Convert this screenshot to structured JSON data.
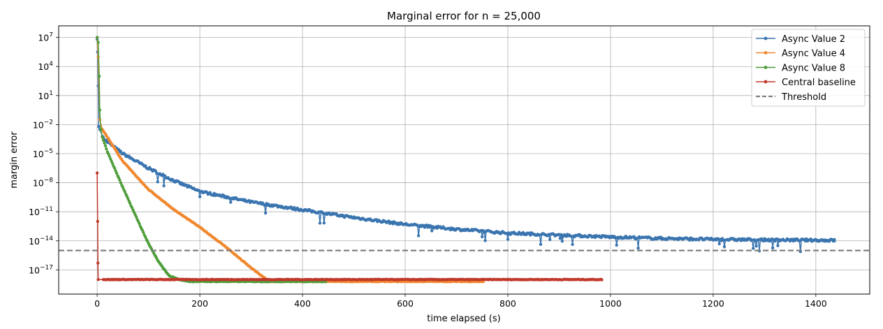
{
  "chart_data": {
    "type": "line",
    "title": "Marginal error for n = 25,000",
    "xlabel": "time elapsed (s)",
    "ylabel": "margin error",
    "xlim": [
      -75,
      1505
    ],
    "ylim_log10": [
      -19.5,
      8.2
    ],
    "y_scale": "log",
    "grid": true,
    "legend_position": "top-right",
    "x_ticks": [
      {
        "value": 0,
        "label": "0"
      },
      {
        "value": 200,
        "label": "200"
      },
      {
        "value": 400,
        "label": "400"
      },
      {
        "value": 600,
        "label": "600"
      },
      {
        "value": 800,
        "label": "800"
      },
      {
        "value": 1000,
        "label": "1000"
      },
      {
        "value": 1200,
        "label": "1200"
      },
      {
        "value": 1400,
        "label": "1400"
      }
    ],
    "y_ticks": [
      {
        "exp": 7,
        "base": "10",
        "sup": "7"
      },
      {
        "exp": 4,
        "base": "10",
        "sup": "4"
      },
      {
        "exp": 1,
        "base": "10",
        "sup": "1"
      },
      {
        "exp": -2,
        "base": "10",
        "sup": "−2"
      },
      {
        "exp": -5,
        "base": "10",
        "sup": "−5"
      },
      {
        "exp": -8,
        "base": "10",
        "sup": "−8"
      },
      {
        "exp": -11,
        "base": "10",
        "sup": "−11"
      },
      {
        "exp": -14,
        "base": "10",
        "sup": "−14"
      },
      {
        "exp": -17,
        "base": "10",
        "sup": "−17"
      }
    ],
    "threshold": {
      "name": "Threshold",
      "log10_value": -15,
      "color": "#808080",
      "style": "dashed"
    },
    "series": [
      {
        "name": "Async Value 2",
        "color": "#3a75b0",
        "x_max": 1436,
        "points": [
          [
            0,
            6.8
          ],
          [
            1,
            5.5
          ],
          [
            2,
            2.0
          ],
          [
            3,
            -2.2
          ],
          [
            5,
            -2.5
          ],
          [
            10,
            -3.2
          ],
          [
            20,
            -3.8
          ],
          [
            50,
            -5.0
          ],
          [
            100,
            -6.5
          ],
          [
            150,
            -7.8
          ],
          [
            200,
            -8.9
          ],
          [
            300,
            -10.0
          ],
          [
            400,
            -10.8
          ],
          [
            500,
            -11.6
          ],
          [
            600,
            -12.3
          ],
          [
            700,
            -12.8
          ],
          [
            800,
            -13.2
          ],
          [
            900,
            -13.4
          ],
          [
            1000,
            -13.6
          ],
          [
            1100,
            -13.75
          ],
          [
            1200,
            -13.85
          ],
          [
            1300,
            -13.9
          ],
          [
            1436,
            -13.95
          ]
        ]
      },
      {
        "name": "Async Value 4",
        "color": "#f0882f",
        "x_max": 752,
        "points": [
          [
            0,
            7.0
          ],
          [
            2,
            5.0
          ],
          [
            5,
            -1.5
          ],
          [
            10,
            -2.5
          ],
          [
            20,
            -3.3
          ],
          [
            50,
            -5.8
          ],
          [
            100,
            -8.7
          ],
          [
            150,
            -10.8
          ],
          [
            200,
            -12.6
          ],
          [
            250,
            -14.6
          ],
          [
            300,
            -16.8
          ],
          [
            330,
            -18.0
          ],
          [
            340,
            -18.2
          ],
          [
            752,
            -18.2
          ]
        ]
      },
      {
        "name": "Async Value 8",
        "color": "#4f9e3b",
        "x_max": 445,
        "points": [
          [
            0,
            7.0
          ],
          [
            2,
            6.5
          ],
          [
            4,
            3.0
          ],
          [
            5,
            -0.5
          ],
          [
            7,
            -2.5
          ],
          [
            10,
            -3.3
          ],
          [
            20,
            -4.8
          ],
          [
            50,
            -8.5
          ],
          [
            80,
            -12.0
          ],
          [
            100,
            -14.3
          ],
          [
            120,
            -16.2
          ],
          [
            140,
            -17.6
          ],
          [
            160,
            -18.0
          ],
          [
            180,
            -18.2
          ],
          [
            445,
            -18.2
          ]
        ]
      },
      {
        "name": "Central baseline",
        "color": "#c0392b",
        "x_max": 983,
        "points": [
          [
            0,
            -7.0
          ],
          [
            1,
            -12.0
          ],
          [
            1.5,
            -16.3
          ],
          [
            2,
            -18.0
          ],
          [
            983,
            -18.0
          ]
        ]
      }
    ]
  }
}
